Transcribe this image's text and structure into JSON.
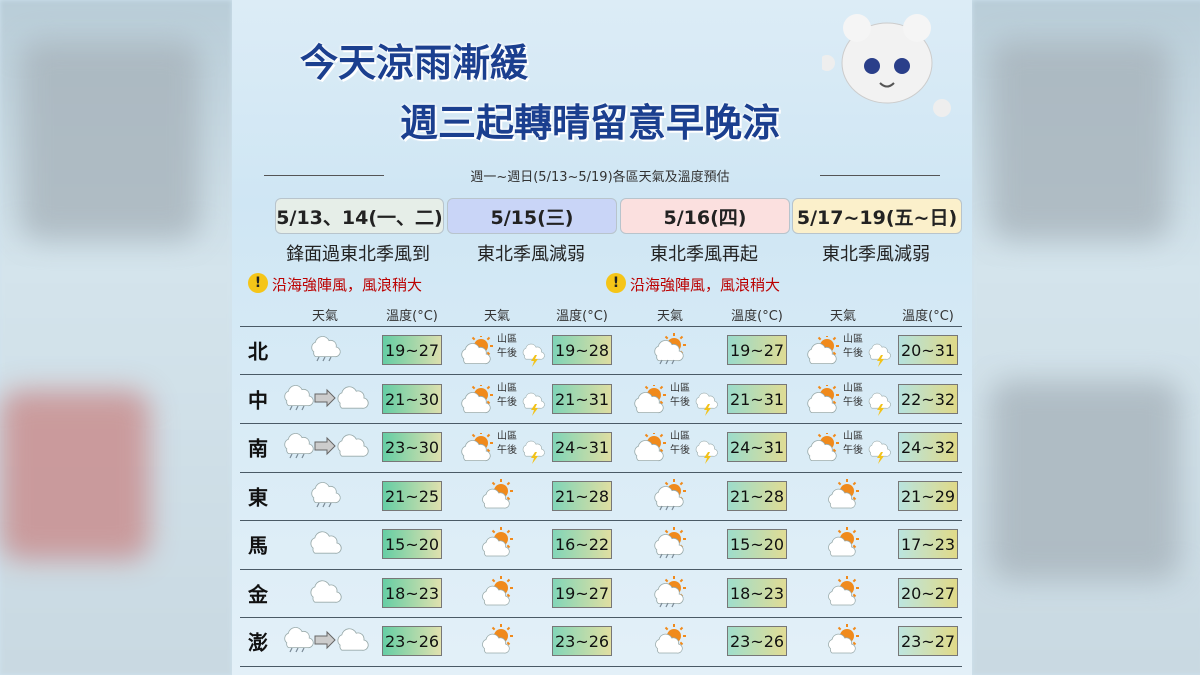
{
  "title": {
    "line1": "今天涼雨漸緩",
    "line2": "週三起轉晴留意早晚涼"
  },
  "subtitle": "週一~週日(5/13~5/19)各區天氣及溫度預估",
  "periods": [
    {
      "label": "5/13、14(一、二)",
      "desc": "鋒面過東北季風到",
      "warning": "沿海強陣風，風浪稍大"
    },
    {
      "label": "5/15(三)",
      "desc": "東北季風減弱"
    },
    {
      "label": "5/16(四)",
      "desc": "東北季風再起",
      "warning": "沿海強陣風，風浪稍大"
    },
    {
      "label": "5/17~19(五~日)",
      "desc": "東北季風減弱"
    }
  ],
  "column_headers": {
    "weather": "天氣",
    "temp": "溫度(°C)"
  },
  "rows": [
    {
      "region": "北",
      "cells": [
        {
          "temp": "19~27"
        },
        {
          "temp": "19~28",
          "notes": [
            "山區",
            "午後"
          ]
        },
        {
          "temp": "19~27"
        },
        {
          "temp": "20~31",
          "notes": [
            "山區",
            "午後"
          ]
        }
      ]
    },
    {
      "region": "中",
      "cells": [
        {
          "temp": "21~30"
        },
        {
          "temp": "21~31",
          "notes": [
            "山區",
            "午後"
          ]
        },
        {
          "temp": "21~31",
          "notes": [
            "山區",
            "午後"
          ]
        },
        {
          "temp": "22~32",
          "notes": [
            "山區",
            "午後"
          ]
        }
      ]
    },
    {
      "region": "南",
      "cells": [
        {
          "temp": "23~30"
        },
        {
          "temp": "24~31",
          "notes": [
            "山區",
            "午後"
          ]
        },
        {
          "temp": "24~31",
          "notes": [
            "山區",
            "午後"
          ]
        },
        {
          "temp": "24~32",
          "notes": [
            "山區",
            "午後"
          ]
        }
      ]
    },
    {
      "region": "東",
      "cells": [
        {
          "temp": "21~25"
        },
        {
          "temp": "21~28"
        },
        {
          "temp": "21~28"
        },
        {
          "temp": "21~29"
        }
      ]
    },
    {
      "region": "馬",
      "cells": [
        {
          "temp": "15~20"
        },
        {
          "temp": "16~22"
        },
        {
          "temp": "15~20"
        },
        {
          "temp": "17~23"
        }
      ]
    },
    {
      "region": "金",
      "cells": [
        {
          "temp": "18~23"
        },
        {
          "temp": "19~27"
        },
        {
          "temp": "18~23"
        },
        {
          "temp": "20~27"
        }
      ]
    },
    {
      "region": "澎",
      "cells": [
        {
          "temp": "23~26"
        },
        {
          "temp": "23~26"
        },
        {
          "temp": "23~26"
        },
        {
          "temp": "23~27"
        }
      ]
    }
  ]
}
